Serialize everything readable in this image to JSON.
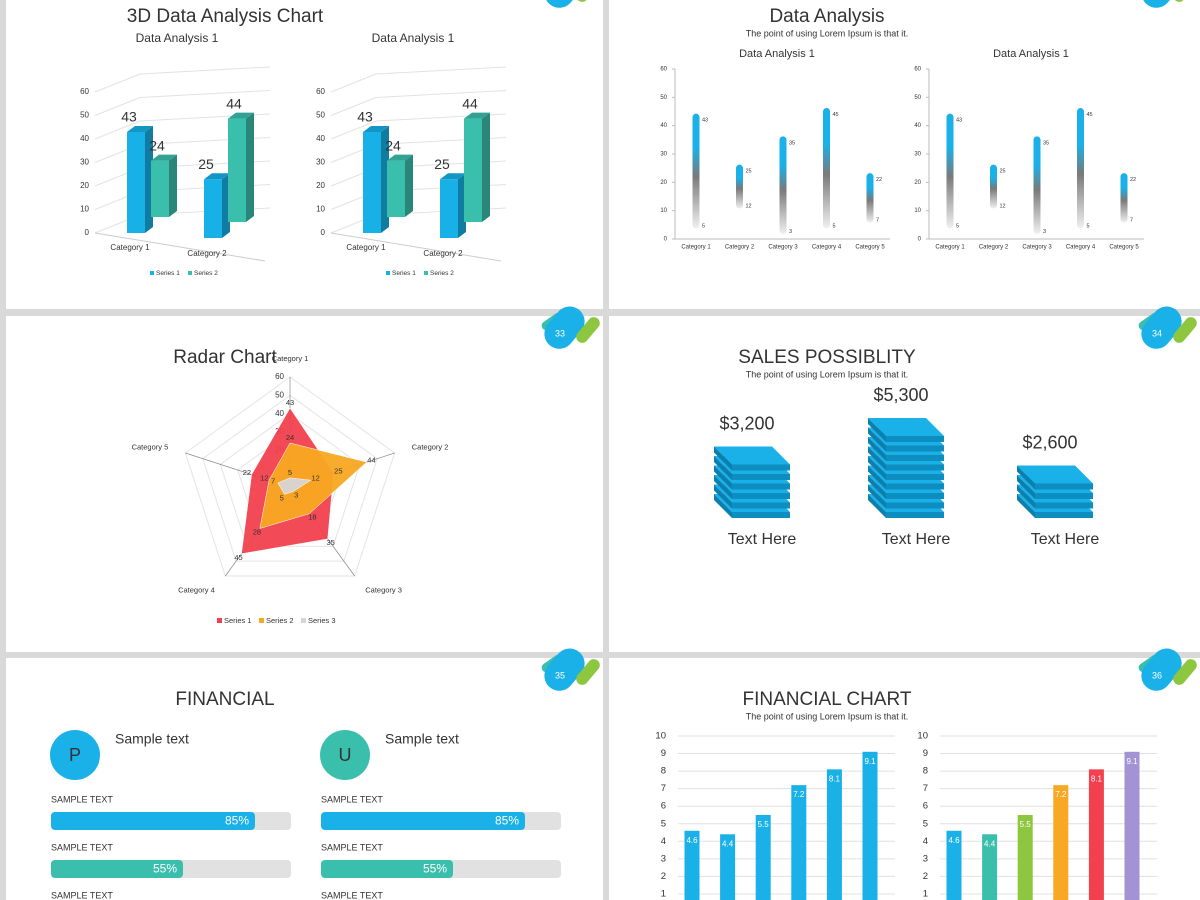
{
  "slides": [
    {
      "title": "3D Data Analysis Chart",
      "charts": [
        {
          "type": "bar3d",
          "title": "Data Analysis 1",
          "categories": [
            "Category 1",
            "Category 2"
          ],
          "series": [
            {
              "name": "Series 1",
              "color": "#17b1e8",
              "values": [
                43,
                25
              ]
            },
            {
              "name": "Series 2",
              "color": "#3bbfad",
              "values": [
                24,
                44
              ]
            }
          ],
          "ylim": [
            0,
            60
          ],
          "yticks": [
            0,
            10,
            20,
            30,
            40,
            50,
            60
          ]
        },
        {
          "type": "bar3d",
          "title": "Data Analysis 1",
          "categories": [
            "Category 1",
            "Category 2"
          ],
          "series": [
            {
              "name": "Series 1",
              "color": "#17b1e8",
              "values": [
                43,
                25
              ]
            },
            {
              "name": "Series 2",
              "color": "#3bbfad",
              "values": [
                24,
                44
              ]
            }
          ],
          "ylim": [
            0,
            60
          ],
          "yticks": [
            0,
            10,
            20,
            30,
            40,
            50,
            60
          ]
        }
      ]
    },
    {
      "title": "Data Analysis",
      "subtitle": "The point of using Lorem Ipsum is that it.",
      "charts": [
        {
          "type": "range",
          "title": "Data Analysis 1",
          "categories": [
            "Category 1",
            "Category 2",
            "Category 3",
            "Category 4",
            "Category 5"
          ],
          "high": [
            43,
            25,
            35,
            45,
            22
          ],
          "low": [
            5,
            12,
            3,
            5,
            7
          ],
          "color": "#1ab0e8",
          "ylim": [
            0,
            60
          ],
          "yticks": [
            0,
            10,
            20,
            30,
            40,
            50,
            60
          ]
        },
        {
          "type": "range",
          "title": "Data Analysis 1",
          "categories": [
            "Category 1",
            "Category 2",
            "Category 3",
            "Category 4",
            "Category 5"
          ],
          "high": [
            43,
            25,
            35,
            45,
            22
          ],
          "low": [
            5,
            12,
            3,
            5,
            7
          ],
          "color": "#1ab0e8",
          "ylim": [
            0,
            60
          ],
          "yticks": [
            0,
            10,
            20,
            30,
            40,
            50,
            60
          ]
        }
      ]
    },
    {
      "number": "33",
      "title": "Radar Chart",
      "charts": [
        {
          "type": "radar",
          "categories": [
            "Category 1",
            "Category 2",
            "Category 3",
            "Category 4",
            "Category 5"
          ],
          "series": [
            {
              "name": "Series 1",
              "color": "#f2404e",
              "values": [
                43,
                25,
                35,
                45,
                22
              ]
            },
            {
              "name": "Series 2",
              "color": "#f8a822",
              "values": [
                24,
                44,
                18,
                28,
                12
              ]
            },
            {
              "name": "Series 3",
              "color": "#d6d6d6",
              "values": [
                5,
                12,
                3,
                5,
                7
              ]
            }
          ],
          "rlim": [
            0,
            60
          ],
          "rticks": [
            0,
            10,
            20,
            30,
            40,
            50,
            60
          ]
        }
      ]
    },
    {
      "number": "34",
      "title": "SALES POSSIBLITY",
      "subtitle": "The point of using Lorem Ipsum is that it.",
      "items": [
        {
          "amount": "$3,200",
          "heading": "Text Here"
        },
        {
          "amount": "$5,300",
          "heading": "Text Here"
        },
        {
          "amount": "$2,600",
          "heading": "Text Here"
        }
      ]
    },
    {
      "number": "35",
      "title": "FINANCIAL",
      "profiles": [
        {
          "letter": "P",
          "heading": "Sample text",
          "color": "#1ab0e8",
          "bars": [
            {
              "label": "SAMPLE TEXT",
              "value": 85,
              "value_label": "85%",
              "color": "#1ab0e8"
            },
            {
              "label": "SAMPLE TEXT",
              "value": 55,
              "value_label": "55%",
              "color": "#3bbfad"
            },
            {
              "label": "SAMPLE TEXT"
            }
          ]
        },
        {
          "letter": "U",
          "heading": "Sample text",
          "color": "#3bbfad",
          "bars": [
            {
              "label": "SAMPLE TEXT",
              "value": 85,
              "value_label": "85%",
              "color": "#1ab0e8"
            },
            {
              "label": "SAMPLE TEXT",
              "value": 55,
              "value_label": "55%",
              "color": "#3bbfad"
            },
            {
              "label": "SAMPLE TEXT"
            }
          ]
        }
      ]
    },
    {
      "number": "36",
      "title": "FINANCIAL CHART",
      "subtitle": "The point of using Lorem Ipsum is that it.",
      "charts": [
        {
          "type": "bar",
          "values": [
            4.6,
            4.4,
            5.5,
            7.2,
            8.1,
            9.1
          ],
          "colors": [
            "#1ab0e8",
            "#1ab0e8",
            "#1ab0e8",
            "#1ab0e8",
            "#1ab0e8",
            "#1ab0e8"
          ],
          "ylim": [
            0,
            10
          ],
          "yticks": [
            1,
            2,
            3,
            4,
            5,
            6,
            7,
            8,
            9,
            10
          ],
          "grid": true
        },
        {
          "type": "bar",
          "values": [
            4.6,
            4.4,
            5.5,
            7.2,
            8.1,
            9.1
          ],
          "colors": [
            "#1ab0e8",
            "#3bbfad",
            "#8dc63f",
            "#f8a822",
            "#f2404e",
            "#a392d4"
          ],
          "ylim": [
            0,
            10
          ],
          "yticks": [
            1,
            2,
            3,
            4,
            5,
            6,
            7,
            8,
            9,
            10
          ],
          "grid": true
        }
      ]
    }
  ]
}
